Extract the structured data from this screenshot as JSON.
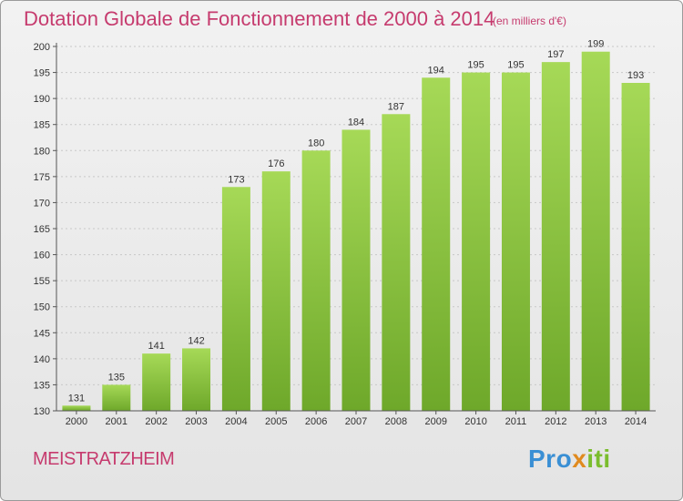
{
  "header": {
    "title": "Dotation Globale de Fonctionnement de 2000 à 2014",
    "subtitle": "(en milliers d'€)"
  },
  "footer": {
    "town": "MEISTRATZHEIM",
    "logo_parts": [
      "Pro",
      "x",
      "iti"
    ]
  },
  "colors": {
    "bar_light": "#a6d957",
    "bar_dark": "#6ea82a",
    "title": "#c63b6e"
  },
  "chart_data": {
    "type": "bar",
    "title": "Dotation Globale de Fonctionnement de 2000 à 2014",
    "subtitle": "(en milliers d'€)",
    "categories": [
      "2000",
      "2001",
      "2002",
      "2003",
      "2004",
      "2005",
      "2006",
      "2007",
      "2008",
      "2009",
      "2010",
      "2011",
      "2012",
      "2013",
      "2014"
    ],
    "values": [
      131,
      135,
      141,
      142,
      173,
      176,
      180,
      184,
      187,
      194,
      195,
      195,
      197,
      199,
      193
    ],
    "ylim": [
      130,
      200
    ],
    "yticks": [
      130,
      135,
      140,
      145,
      150,
      155,
      160,
      165,
      170,
      175,
      180,
      185,
      190,
      195,
      200
    ],
    "grid": true,
    "legend": "none"
  }
}
